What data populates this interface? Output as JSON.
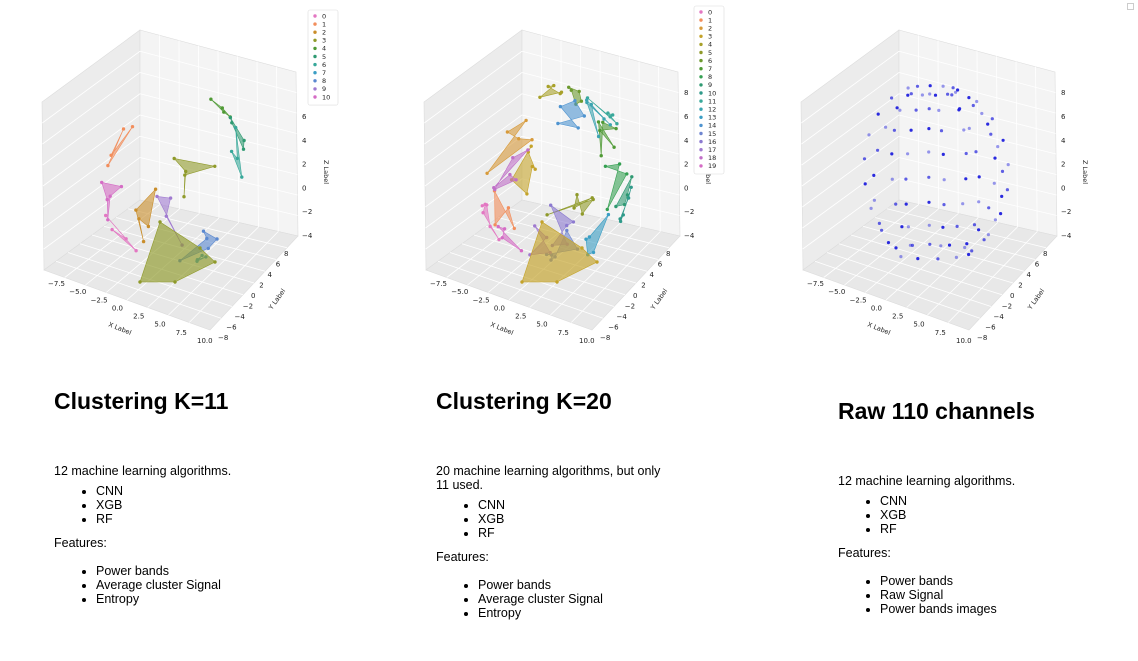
{
  "panels": [
    {
      "title": "Clustering K=11",
      "intro": "12 machine learning algorithms.",
      "algorithms": [
        "CNN",
        "XGB",
        "RF"
      ],
      "features_label": "Features:",
      "features": [
        "Power bands",
        "Average cluster Signal",
        "Entropy"
      ],
      "chart_data": {
        "type": "scatter",
        "style": "clustered-3d-polygons",
        "xlabel": "X Label",
        "ylabel": "Y Label",
        "zlabel": "Z Label",
        "xticks": [
          "−7.5",
          "−5.0",
          "−2.5",
          "0.0",
          "2.5",
          "5.0",
          "7.5",
          "10.0"
        ],
        "yticks": [
          "−8",
          "−6",
          "−4",
          "−2",
          "0",
          "2",
          "4",
          "6",
          "8"
        ],
        "zticks": [
          "−4",
          "−2",
          "0",
          "2",
          "4",
          "6"
        ],
        "legend": [
          "0",
          "1",
          "2",
          "3",
          "4",
          "5",
          "6",
          "7",
          "8",
          "9",
          "10"
        ],
        "legend_position": "top-right",
        "colors": [
          "#e377c2",
          "#f28e5c",
          "#c98d2a",
          "#8f9a2a",
          "#4f9a35",
          "#2f9a72",
          "#38a89a",
          "#3a9ec4",
          "#5a88d0",
          "#a07ad0",
          "#d56cc5"
        ]
      }
    },
    {
      "title": "Clustering K=20",
      "intro": "20 machine learning algorithms, but only 11 used.",
      "algorithms": [
        "CNN",
        "XGB",
        "RF"
      ],
      "features_label": "Features:",
      "features": [
        "Power bands",
        "Average cluster Signal",
        "Entropy"
      ],
      "chart_data": {
        "type": "scatter",
        "style": "clustered-3d-polygons",
        "xlabel": "X Label",
        "ylabel": "Y Label",
        "zlabel": "Z Label",
        "xticks": [
          "−7.5",
          "−5.0",
          "−2.5",
          "0.0",
          "2.5",
          "5.0",
          "7.5",
          "10.0"
        ],
        "yticks": [
          "−8",
          "−6",
          "−4",
          "−2",
          "0",
          "2",
          "4",
          "6",
          "8"
        ],
        "zticks": [
          "−4",
          "−2",
          "0",
          "2",
          "4",
          "6",
          "8"
        ],
        "legend": [
          "0",
          "1",
          "2",
          "3",
          "4",
          "5",
          "6",
          "7",
          "8",
          "9",
          "10",
          "11",
          "12",
          "13",
          "14",
          "15",
          "16",
          "17",
          "18",
          "19"
        ],
        "legend_position": "top-right",
        "colors": [
          "#e377c2",
          "#f28e5c",
          "#d79a3a",
          "#c4a32a",
          "#a8a12a",
          "#8f9a2a",
          "#6d9a2f",
          "#4f9a35",
          "#35a052",
          "#2f9a72",
          "#2f9a8a",
          "#38a89a",
          "#3aa4b0",
          "#3a9ec4",
          "#4f94d0",
          "#6f86d0",
          "#8c7ad0",
          "#a07ad0",
          "#c06fc8",
          "#d56cc5"
        ]
      }
    },
    {
      "title": "Raw 110 channels",
      "intro": "12 machine learning algorithms.",
      "algorithms": [
        "CNN",
        "XGB",
        "RF"
      ],
      "features_label": "Features:",
      "features": [
        "Power bands",
        "Raw Signal",
        "Power bands images"
      ],
      "chart_data": {
        "type": "scatter",
        "style": "3d-points",
        "xlabel": "X Label",
        "ylabel": "Y Label",
        "zlabel": "Z Label",
        "xticks": [
          "−7.5",
          "−5.0",
          "−2.5",
          "0.0",
          "2.5",
          "5.0",
          "7.5",
          "10.0"
        ],
        "yticks": [
          "−8",
          "−6",
          "−4",
          "−2",
          "0",
          "2",
          "4",
          "6",
          "8"
        ],
        "zticks": [
          "−4",
          "−2",
          "0",
          "2",
          "4",
          "6",
          "8"
        ],
        "legend": [],
        "colors": [
          "#1f1fdd"
        ]
      }
    }
  ]
}
